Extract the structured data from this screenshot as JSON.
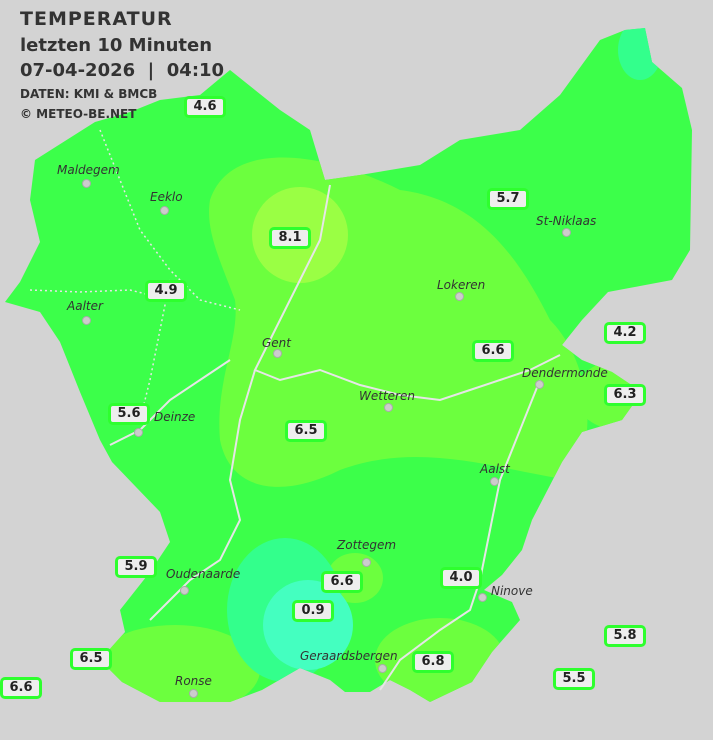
{
  "header": {
    "title": "TEMPERATUR",
    "subtitle": "letzten 10 Minuten",
    "datetime": "07-04-2026  |  04:10",
    "source": "DATEN: KMI & BMCB",
    "copyright": "© METEO-BE.NET"
  },
  "colors": {
    "background": "#d3d3d3",
    "base_green": "#3cff4a",
    "warm_green": "#6cff3e",
    "warmest": "#9aff44",
    "cool_teal": "#33ff8c",
    "coldest": "#44ffc0",
    "label_border": "#2eff2e"
  },
  "cities": [
    "Maldegem",
    "Eeklo",
    "Aalter",
    "Gent",
    "Lokeren",
    "St-Niklaas",
    "Dendermonde",
    "Wetteren",
    "Aalst",
    "Zottegem",
    "Oudenaarde",
    "Ronse",
    "Geraardsbergen",
    "Ninove",
    "Deinze"
  ],
  "stations": [
    "4.6",
    "8.1",
    "5.7",
    "4.9",
    "4.2",
    "6.6",
    "6.3",
    "5.6",
    "6.5",
    "5.9",
    "6.6",
    "4.0",
    "0.9",
    "5.8",
    "6.5",
    "6.8",
    "5.5",
    "6.6"
  ]
}
